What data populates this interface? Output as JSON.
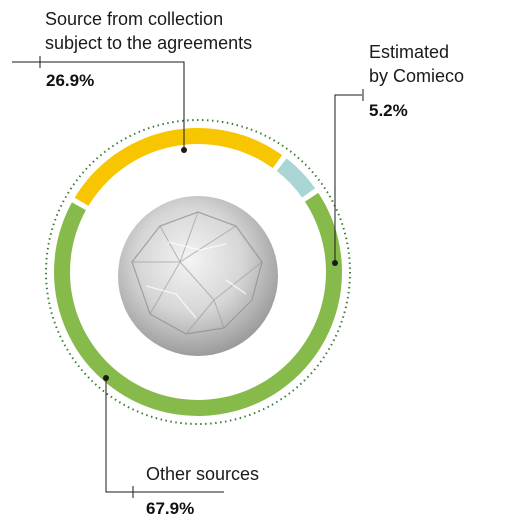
{
  "chart_data": {
    "type": "pie",
    "style": "donut",
    "title": "",
    "slices": [
      {
        "label_lines": [
          "Source from collection",
          "subject to the agreements"
        ],
        "value": 26.9,
        "value_label": "26.9%",
        "color": "#f7c600"
      },
      {
        "label_lines": [
          "Estimated",
          "by Comieco"
        ],
        "value": 5.2,
        "value_label": "5.2%",
        "color": "#a9d6d4"
      },
      {
        "label_lines": [
          "Other sources"
        ],
        "value": 67.9,
        "value_label": "67.9%",
        "color": "#86bb4b"
      }
    ],
    "center_image": "crumpled-paper-ball",
    "outer_ring_color": "#3f7d3c",
    "legend": "none"
  }
}
